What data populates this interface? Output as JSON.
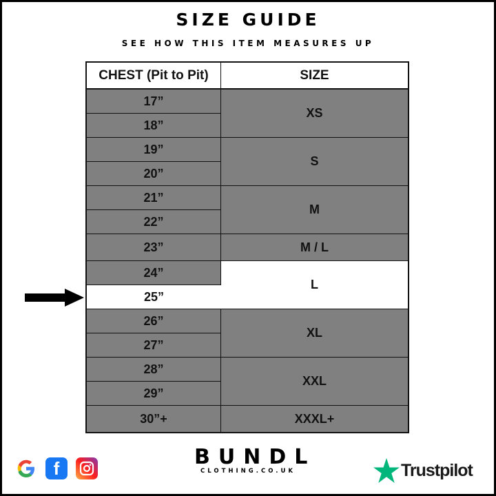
{
  "title": "SIZE GUIDE",
  "subtitle": "SEE HOW THIS ITEM MEASURES UP",
  "table": {
    "headers": [
      "CHEST (Pit to Pit)",
      "SIZE"
    ],
    "chest": [
      "17”",
      "18”",
      "19”",
      "20”",
      "21”",
      "22”",
      "23”",
      "24”",
      "25”",
      "26”",
      "27”",
      "28”",
      "29”",
      "30”+"
    ],
    "sizes": [
      "XS",
      "S",
      "M",
      "M / L",
      "L",
      "XL",
      "XXL",
      "XXXL+"
    ],
    "highlighted_chest": "25”",
    "highlighted_size": "L"
  },
  "colors": {
    "cell": "#808080",
    "highlight": "#ffffff",
    "trustpilot": "#00b67a"
  },
  "footer": {
    "icons": [
      "google-icon",
      "facebook-icon",
      "instagram-icon"
    ],
    "brand": "BUNDL",
    "brand_sub": "CLOTHING.CO.UK",
    "trustpilot": "Trustpilot"
  }
}
